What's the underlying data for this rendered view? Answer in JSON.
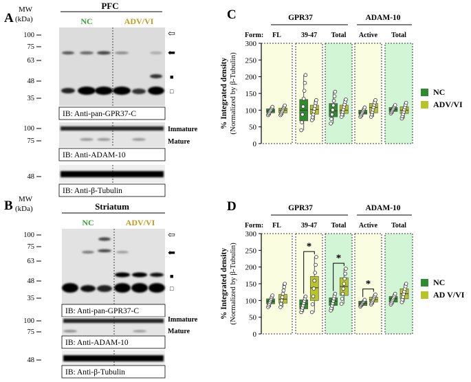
{
  "panelA": {
    "letter": "A",
    "mw_label": "MW",
    "kda_label": "(kDa)",
    "region": "PFC",
    "group_nc": "NC",
    "group_adv": "ADV/VI",
    "mw_gpr": [
      "100",
      "75",
      "63",
      "48",
      "35"
    ],
    "ib_gpr": "IB: Anti-pan-GPR37-C",
    "mw_adam": [
      "100",
      "75"
    ],
    "immature": "Immature",
    "mature": "Mature",
    "ib_adam": "IB: Anti-ADAM-10",
    "mw_tub": "48",
    "ib_tub": "IB: Anti-β-Tubulin",
    "marker_glyphs": [
      "⇦",
      "⬅",
      "■",
      "□"
    ]
  },
  "panelB": {
    "letter": "B",
    "mw_label": "MW",
    "kda_label": "(kDa)",
    "region": "Striatum",
    "group_nc": "NC",
    "group_adv": "ADV/VI",
    "mw_gpr": [
      "100",
      "75",
      "63",
      "48",
      "35"
    ],
    "ib_gpr": "IB: Anti-pan-GPR37-C",
    "mw_adam": [
      "100",
      "75"
    ],
    "immature": "Immature",
    "mature": "Mature",
    "ib_adam": "IB: Anti-ADAM-10",
    "mw_tub": "48",
    "ib_tub": "IB: Anti-β-Tubulin",
    "marker_glyphs": [
      "⇦",
      "⬅",
      "■",
      "□"
    ]
  },
  "chart_data": [
    {
      "panel": "C",
      "type": "box",
      "header_gpr": "GPR37",
      "header_adam": "ADAM-10",
      "form_label": "Form:",
      "forms": [
        "FL",
        "39-47",
        "Total",
        "Active",
        "Total"
      ],
      "ylabel": "% Integrated density",
      "ylabel_sub": "(Normalized by β-Tubulin)",
      "ylim": [
        0,
        300
      ],
      "yticks": [
        "0",
        "50",
        "100",
        "150",
        "200",
        "250",
        "300"
      ],
      "legend": [
        "NC",
        "ADV/VI"
      ],
      "colors": {
        "nc": "#2e8b2e",
        "adv": "#b8c428",
        "bg_light": "#fbfde0",
        "bg_green": "#d2f5d5"
      },
      "groups": [
        {
          "nc": {
            "q1": 92,
            "med": 98,
            "q3": 104,
            "min": 85,
            "max": 110
          },
          "adv": {
            "q1": 92,
            "med": 100,
            "q3": 106,
            "min": 85,
            "max": 114
          }
        },
        {
          "nc": {
            "q1": 68,
            "med": 100,
            "q3": 132,
            "min": 40,
            "max": 205
          },
          "adv": {
            "q1": 88,
            "med": 102,
            "q3": 115,
            "min": 70,
            "max": 130
          }
        },
        {
          "nc": {
            "q1": 80,
            "med": 98,
            "q3": 120,
            "min": 60,
            "max": 155
          },
          "adv": {
            "q1": 90,
            "med": 100,
            "q3": 115,
            "min": 80,
            "max": 132
          }
        },
        {
          "nc": {
            "q1": 88,
            "med": 92,
            "q3": 100,
            "min": 80,
            "max": 108
          },
          "adv": {
            "q1": 92,
            "med": 108,
            "q3": 120,
            "min": 80,
            "max": 130
          }
        },
        {
          "nc": {
            "q1": 96,
            "med": 102,
            "q3": 108,
            "min": 90,
            "max": 115
          },
          "adv": {
            "q1": 90,
            "med": 100,
            "q3": 110,
            "min": 75,
            "max": 122
          }
        }
      ]
    },
    {
      "panel": "D",
      "type": "box",
      "header_gpr": "GPR37",
      "header_adam": "ADAM-10",
      "form_label": "Form:",
      "forms": [
        "FL",
        "39-47",
        "Total",
        "Active",
        "Total"
      ],
      "ylabel": "% Integrated density",
      "ylabel_sub": "(Normalized by β-Tubulin)",
      "ylim": [
        0,
        300
      ],
      "yticks": [
        "0",
        "50",
        "100",
        "150",
        "200",
        "250",
        "300"
      ],
      "legend": [
        "NC",
        "AD V/VI"
      ],
      "significance": "*",
      "sig_groups": [
        1,
        2,
        3
      ],
      "colors": {
        "nc": "#2e8b2e",
        "adv": "#b8c428",
        "bg_light": "#fbfde0",
        "bg_green": "#d2f5d5"
      },
      "groups": [
        {
          "nc": {
            "q1": 90,
            "med": 98,
            "q3": 105,
            "min": 80,
            "max": 115
          },
          "adv": {
            "q1": 92,
            "med": 104,
            "q3": 118,
            "min": 80,
            "max": 150
          }
        },
        {
          "nc": {
            "q1": 75,
            "med": 90,
            "q3": 102,
            "min": 65,
            "max": 112
          },
          "adv": {
            "q1": 100,
            "med": 138,
            "q3": 172,
            "min": 65,
            "max": 230
          }
        },
        {
          "nc": {
            "q1": 85,
            "med": 98,
            "q3": 108,
            "min": 70,
            "max": 120
          },
          "adv": {
            "q1": 115,
            "med": 142,
            "q3": 168,
            "min": 90,
            "max": 195
          }
        },
        {
          "nc": {
            "q1": 85,
            "med": 92,
            "q3": 98,
            "min": 82,
            "max": 102
          },
          "adv": {
            "q1": 95,
            "med": 102,
            "q3": 110,
            "min": 88,
            "max": 118
          }
        },
        {
          "nc": {
            "q1": 95,
            "med": 105,
            "q3": 112,
            "min": 88,
            "max": 120
          },
          "adv": {
            "q1": 105,
            "med": 120,
            "q3": 135,
            "min": 95,
            "max": 150
          }
        }
      ]
    }
  ]
}
